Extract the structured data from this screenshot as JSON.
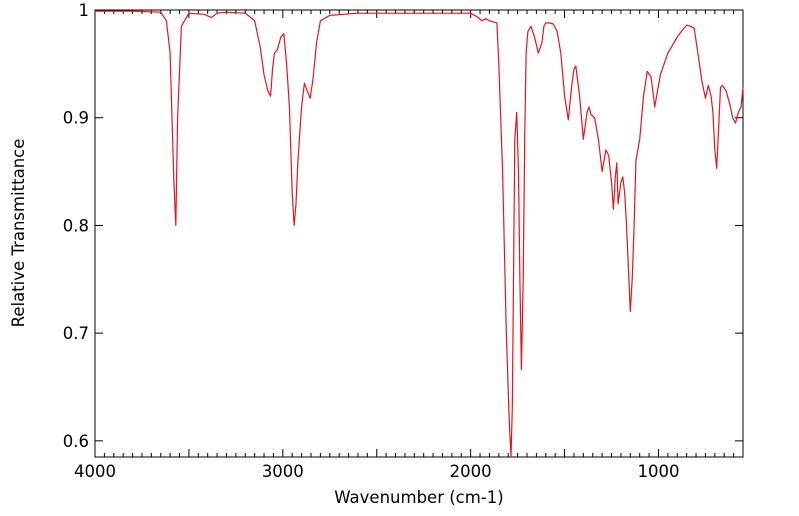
{
  "chart_data": {
    "type": "line",
    "xlabel": "Wavenumber (cm-1)",
    "ylabel": "Relative Transmittance",
    "xlim": [
      4000,
      550
    ],
    "ylim": [
      0.585,
      1.0
    ],
    "x_ticks": [
      4000,
      3000,
      2000,
      1000
    ],
    "x_tick_labels": [
      "4000",
      "3000",
      "2000",
      "1000"
    ],
    "y_ticks": [
      0.6,
      0.7,
      0.8,
      0.9,
      1.0
    ],
    "y_tick_labels": [
      "0.6",
      "0.7",
      "0.8",
      "0.9",
      "1"
    ],
    "grid": false,
    "series": [
      {
        "color": "#e8141b",
        "x": [
          4000,
          3800,
          3650,
          3620,
          3600,
          3590,
          3580,
          3570,
          3560,
          3540,
          3500,
          3420,
          3380,
          3350,
          3300,
          3200,
          3150,
          3120,
          3100,
          3080,
          3065,
          3055,
          3045,
          3030,
          3010,
          2995,
          2980,
          2965,
          2950,
          2940,
          2930,
          2920,
          2900,
          2885,
          2870,
          2855,
          2840,
          2820,
          2800,
          2750,
          2600,
          2400,
          2200,
          2000,
          1960,
          1940,
          1920,
          1900,
          1860,
          1850,
          1830,
          1810,
          1795,
          1785,
          1778,
          1772,
          1765,
          1755,
          1745,
          1738,
          1730,
          1720,
          1712,
          1705,
          1695,
          1680,
          1660,
          1640,
          1620,
          1610,
          1600,
          1580,
          1560,
          1540,
          1520,
          1500,
          1480,
          1462,
          1450,
          1440,
          1420,
          1400,
          1380,
          1370,
          1360,
          1340,
          1320,
          1300,
          1280,
          1265,
          1250,
          1240,
          1230,
          1222,
          1215,
          1200,
          1190,
          1180,
          1170,
          1160,
          1150,
          1140,
          1130,
          1120,
          1110,
          1100,
          1080,
          1060,
          1040,
          1030,
          1020,
          1010,
          1000,
          990,
          970,
          950,
          900,
          870,
          850,
          830,
          810,
          790,
          770,
          750,
          735,
          720,
          710,
          700,
          690,
          680,
          670,
          660,
          640,
          620,
          605,
          590,
          575,
          560,
          550
        ],
        "y": [
          0.999,
          0.999,
          0.998,
          0.99,
          0.96,
          0.9,
          0.84,
          0.8,
          0.9,
          0.985,
          0.997,
          0.996,
          0.993,
          0.997,
          0.998,
          0.997,
          0.99,
          0.965,
          0.94,
          0.925,
          0.92,
          0.945,
          0.96,
          0.963,
          0.975,
          0.978,
          0.95,
          0.91,
          0.83,
          0.8,
          0.82,
          0.86,
          0.91,
          0.932,
          0.925,
          0.918,
          0.935,
          0.97,
          0.99,
          0.995,
          0.997,
          0.997,
          0.997,
          0.997,
          0.993,
          0.99,
          0.992,
          0.99,
          0.988,
          0.95,
          0.85,
          0.7,
          0.62,
          0.585,
          0.63,
          0.75,
          0.88,
          0.905,
          0.85,
          0.75,
          0.666,
          0.75,
          0.88,
          0.96,
          0.98,
          0.985,
          0.975,
          0.96,
          0.97,
          0.985,
          0.988,
          0.988,
          0.987,
          0.98,
          0.96,
          0.92,
          0.898,
          0.93,
          0.945,
          0.948,
          0.92,
          0.88,
          0.905,
          0.91,
          0.903,
          0.9,
          0.88,
          0.85,
          0.87,
          0.865,
          0.84,
          0.815,
          0.845,
          0.858,
          0.82,
          0.84,
          0.845,
          0.83,
          0.8,
          0.76,
          0.72,
          0.75,
          0.8,
          0.86,
          0.87,
          0.88,
          0.92,
          0.943,
          0.938,
          0.925,
          0.91,
          0.92,
          0.93,
          0.94,
          0.95,
          0.96,
          0.975,
          0.982,
          0.986,
          0.985,
          0.983,
          0.96,
          0.935,
          0.918,
          0.93,
          0.92,
          0.905,
          0.87,
          0.853,
          0.89,
          0.928,
          0.93,
          0.925,
          0.912,
          0.9,
          0.895,
          0.905,
          0.91,
          0.928
        ]
      }
    ]
  }
}
